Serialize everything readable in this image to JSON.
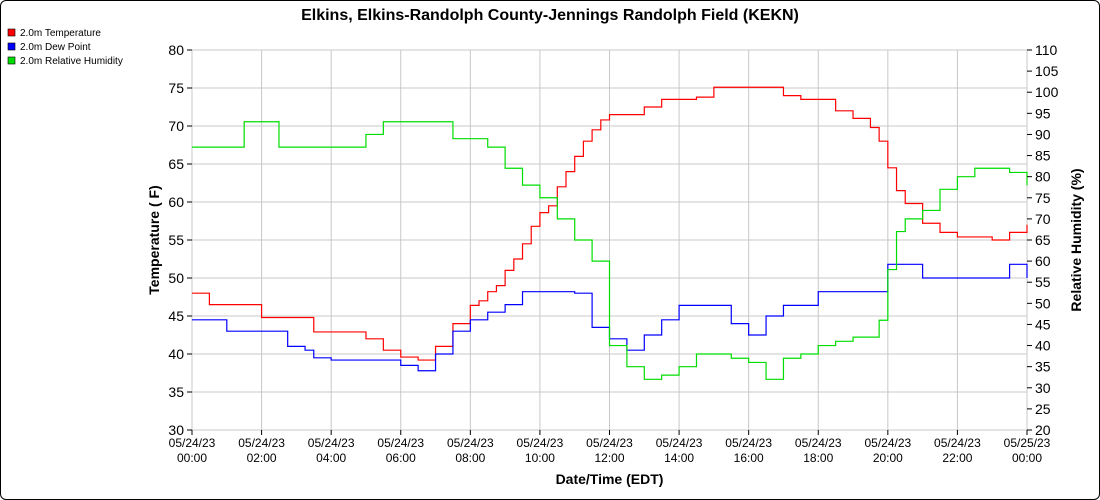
{
  "chart_data": {
    "type": "line",
    "title": "Elkins, Elkins-Randolph County-Jennings Randolph Field (KEKN)",
    "xlabel": "Date/Time (EDT)",
    "ylabel": "Temperature ( F)",
    "y2label": "Relative Humidity (%)",
    "xlim": [
      "05/24/23 00:00",
      "05/25/23 00:00"
    ],
    "ylim": [
      30,
      80
    ],
    "y2lim": [
      20,
      110
    ],
    "yticks": [
      "30",
      "35",
      "40",
      "45",
      "50",
      "55",
      "60",
      "65",
      "70",
      "75",
      "80"
    ],
    "y2ticks": [
      "20",
      "25",
      "30",
      "35",
      "40",
      "45",
      "50",
      "55",
      "60",
      "65",
      "70",
      "75",
      "80",
      "85",
      "90",
      "95",
      "100",
      "105",
      "110"
    ],
    "xticks": [
      {
        "date": "05/24/23",
        "time": "00:00"
      },
      {
        "date": "05/24/23",
        "time": "02:00"
      },
      {
        "date": "05/24/23",
        "time": "04:00"
      },
      {
        "date": "05/24/23",
        "time": "06:00"
      },
      {
        "date": "05/24/23",
        "time": "08:00"
      },
      {
        "date": "05/24/23",
        "time": "10:00"
      },
      {
        "date": "05/24/23",
        "time": "12:00"
      },
      {
        "date": "05/24/23",
        "time": "14:00"
      },
      {
        "date": "05/24/23",
        "time": "16:00"
      },
      {
        "date": "05/24/23",
        "time": "18:00"
      },
      {
        "date": "05/24/23",
        "time": "20:00"
      },
      {
        "date": "05/24/23",
        "time": "22:00"
      },
      {
        "date": "05/25/23",
        "time": "00:00"
      }
    ],
    "grid": true,
    "legend_position": "top-left",
    "series": [
      {
        "name": "2.0m Temperature",
        "color": "#ff0000",
        "axis": "left",
        "x": [
          0,
          0.4,
          0.5,
          1.0,
          1.5,
          2.0,
          2.5,
          3.0,
          3.5,
          4.0,
          4.5,
          5.0,
          5.5,
          6.0,
          6.5,
          7.0,
          7.5,
          8.0,
          8.25,
          8.5,
          8.75,
          9.0,
          9.25,
          9.5,
          9.75,
          10.0,
          10.25,
          10.5,
          10.75,
          11.0,
          11.25,
          11.5,
          11.75,
          12.0,
          12.5,
          13.0,
          13.5,
          14.0,
          14.5,
          15.0,
          15.5,
          16.0,
          16.5,
          17.0,
          17.5,
          18.0,
          18.5,
          19.0,
          19.5,
          19.75,
          20.0,
          20.25,
          20.5,
          21.0,
          21.5,
          22.0,
          22.5,
          23.0,
          23.5,
          24.0
        ],
        "values": [
          48.0,
          48.0,
          46.5,
          46.5,
          46.5,
          44.8,
          44.8,
          44.8,
          42.9,
          42.9,
          42.9,
          42.0,
          40.5,
          39.6,
          39.2,
          41.0,
          44.0,
          46.4,
          47.0,
          48.2,
          49.0,
          51.0,
          52.5,
          54.5,
          56.8,
          58.6,
          59.5,
          62.0,
          64.0,
          66.0,
          68.0,
          69.5,
          70.8,
          71.5,
          71.5,
          72.5,
          73.5,
          73.5,
          73.8,
          75.1,
          75.1,
          75.1,
          75.1,
          74.0,
          73.5,
          73.5,
          72.0,
          71.0,
          69.8,
          68.0,
          64.5,
          61.5,
          59.8,
          57.2,
          56.0,
          55.4,
          55.4,
          55.0,
          56.0,
          57.0
        ]
      },
      {
        "name": "2.0m Dew Point",
        "color": "#0000ff",
        "axis": "left",
        "x": [
          0,
          0.5,
          1.0,
          2.0,
          2.75,
          3.25,
          3.5,
          4.0,
          4.5,
          5.0,
          5.5,
          6.0,
          6.5,
          7.0,
          7.5,
          8.0,
          8.5,
          9.0,
          9.5,
          10.0,
          10.5,
          11.0,
          11.5,
          12.0,
          12.5,
          13.0,
          13.5,
          14.0,
          14.5,
          15.0,
          15.5,
          16.0,
          16.5,
          17.0,
          17.5,
          18.0,
          18.5,
          19.0,
          19.5,
          20.0,
          20.5,
          21.0,
          21.5,
          22.0,
          22.5,
          23.0,
          23.5,
          24.0
        ],
        "values": [
          44.5,
          44.5,
          43.0,
          43.0,
          41.0,
          40.5,
          39.5,
          39.2,
          39.2,
          39.2,
          39.2,
          38.5,
          37.8,
          40.0,
          43.0,
          44.5,
          45.5,
          46.5,
          48.2,
          48.2,
          48.2,
          48.0,
          43.5,
          42.0,
          40.5,
          42.5,
          44.5,
          46.4,
          46.4,
          46.4,
          44.0,
          42.5,
          45.0,
          46.4,
          46.4,
          48.2,
          48.2,
          48.2,
          48.2,
          51.8,
          51.8,
          50.0,
          50.0,
          50.0,
          50.0,
          50.0,
          51.8,
          50.0
        ]
      },
      {
        "name": "2.0m Relative Humidity",
        "color": "#00dd00",
        "axis": "right",
        "x": [
          0,
          0.5,
          1.0,
          1.5,
          2.0,
          2.5,
          3.0,
          3.5,
          4.0,
          4.5,
          5.0,
          5.5,
          6.0,
          6.5,
          7.0,
          7.5,
          8.0,
          8.5,
          9.0,
          9.5,
          10.0,
          10.5,
          11.0,
          11.5,
          12.0,
          12.5,
          13.0,
          13.5,
          14.0,
          14.5,
          15.0,
          15.5,
          16.0,
          16.5,
          17.0,
          17.5,
          18.0,
          18.5,
          19.0,
          19.5,
          19.75,
          20.0,
          20.25,
          20.5,
          21.0,
          21.5,
          22.0,
          22.5,
          23.0,
          23.5,
          24.0
        ],
        "values": [
          87,
          87,
          87,
          93,
          93,
          87,
          87,
          87,
          87,
          87,
          90,
          93,
          93,
          93,
          93,
          89,
          89,
          87,
          82,
          78,
          75,
          70,
          65,
          60,
          40,
          35,
          32,
          33,
          35,
          38,
          38,
          37,
          36,
          32,
          37,
          38,
          40,
          41,
          42,
          42,
          46,
          58,
          67,
          70,
          72,
          77,
          80,
          82,
          82,
          81,
          78
        ]
      }
    ]
  }
}
